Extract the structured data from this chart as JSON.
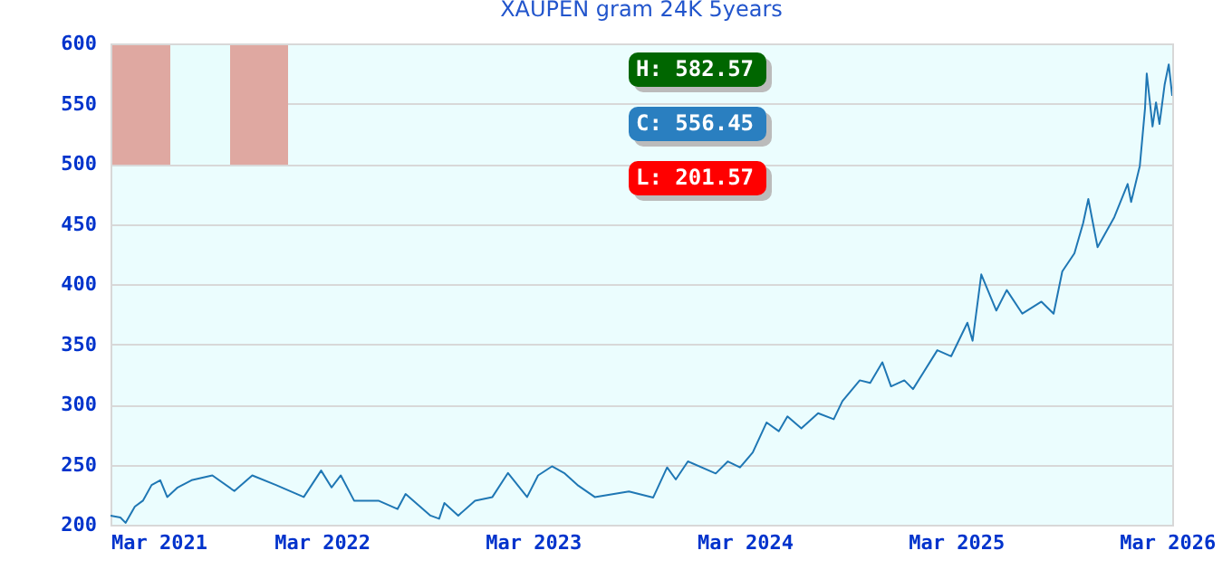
{
  "chart_data": {
    "type": "line",
    "title": "XAUPEN gram 24K 5years",
    "annotations": [
      "H: 582.57",
      "C: 556.45",
      "L: 201.57"
    ],
    "x": [
      "2021-03-01",
      "2021-03-18",
      "2021-03-27",
      "2021-04-12",
      "2021-04-26",
      "2021-05-11",
      "2021-05-26",
      "2021-06-07",
      "2021-06-25",
      "2021-07-19",
      "2021-08-24",
      "2021-10-01",
      "2021-11-01",
      "2021-12-12",
      "2022-01-29",
      "2022-02-28",
      "2022-03-18",
      "2022-04-03",
      "2022-04-26",
      "2022-06-07",
      "2022-07-10",
      "2022-07-24",
      "2022-09-05",
      "2022-09-20",
      "2022-09-29",
      "2022-10-23",
      "2022-11-21",
      "2022-12-21",
      "2023-01-17",
      "2023-02-19",
      "2023-03-10",
      "2023-04-03",
      "2023-04-24",
      "2023-05-17",
      "2023-06-16",
      "2023-08-14",
      "2023-09-25",
      "2023-10-19",
      "2023-11-03",
      "2023-11-24",
      "2024-01-11",
      "2024-02-01",
      "2024-02-22",
      "2024-03-15",
      "2024-04-08",
      "2024-04-29",
      "2024-05-14",
      "2024-06-07",
      "2024-07-06",
      "2024-08-02",
      "2024-08-17",
      "2024-09-16",
      "2024-10-04",
      "2024-10-25",
      "2024-11-09",
      "2024-12-02",
      "2024-12-17",
      "2025-01-28",
      "2025-02-21",
      "2025-03-21",
      "2025-03-30",
      "2025-04-14",
      "2025-05-10",
      "2025-05-28",
      "2025-06-24",
      "2025-07-27",
      "2025-08-17",
      "2025-09-01",
      "2025-09-22",
      "2025-10-07",
      "2025-10-16",
      "2025-11-01",
      "2025-11-30",
      "2025-12-23",
      "2025-12-29",
      "2026-01-13",
      "2026-01-22",
      "2026-01-25",
      "2026-02-04",
      "2026-02-10",
      "2026-02-16",
      "2026-02-25",
      "2026-03-04",
      "2026-03-10"
    ],
    "series": [
      {
        "color": "#1f77b4",
        "values": [
          207.6,
          206,
          201.57,
          215,
          220,
          233,
          237,
          223,
          231,
          237,
          241,
          228,
          241,
          233,
          223,
          245,
          231,
          241,
          220,
          220,
          213,
          225.5,
          207.6,
          205,
          218,
          207.6,
          220,
          223,
          243,
          223,
          241,
          248.5,
          243,
          233,
          223,
          227.6,
          222.6,
          247.6,
          237.6,
          252.6,
          242.6,
          252.6,
          247.6,
          260,
          285,
          277.7,
          290,
          280,
          292.7,
          287.7,
          302.7,
          320,
          317.8,
          335,
          315,
          320,
          312.7,
          345,
          340,
          367.9,
          352.9,
          408,
          378,
          395,
          375.4,
          385.4,
          375.4,
          410.5,
          425.6,
          450.6,
          470.7,
          430.6,
          455.7,
          483.2,
          468.2,
          498.2,
          546,
          575,
          531,
          551,
          533,
          566,
          582.57,
          556.45
        ]
      }
    ],
    "xlim": [
      "2021-03-01",
      "2026-03-10"
    ],
    "xticks": [
      {
        "value": "2021-03-01",
        "label": "Mar 2021"
      },
      {
        "value": "2022-03-01",
        "label": "Mar 2022"
      },
      {
        "value": "2023-03-01",
        "label": "Mar 2023"
      },
      {
        "value": "2024-03-01",
        "label": "Mar 2024"
      },
      {
        "value": "2025-03-01",
        "label": "Mar 2025"
      },
      {
        "value": "2026-03-01",
        "label": "Mar 2026"
      }
    ],
    "ylim": [
      200,
      600
    ],
    "yticks": [
      200,
      250,
      300,
      350,
      400,
      450,
      500,
      550,
      600
    ],
    "grid": "y",
    "line_style": "solid"
  }
}
